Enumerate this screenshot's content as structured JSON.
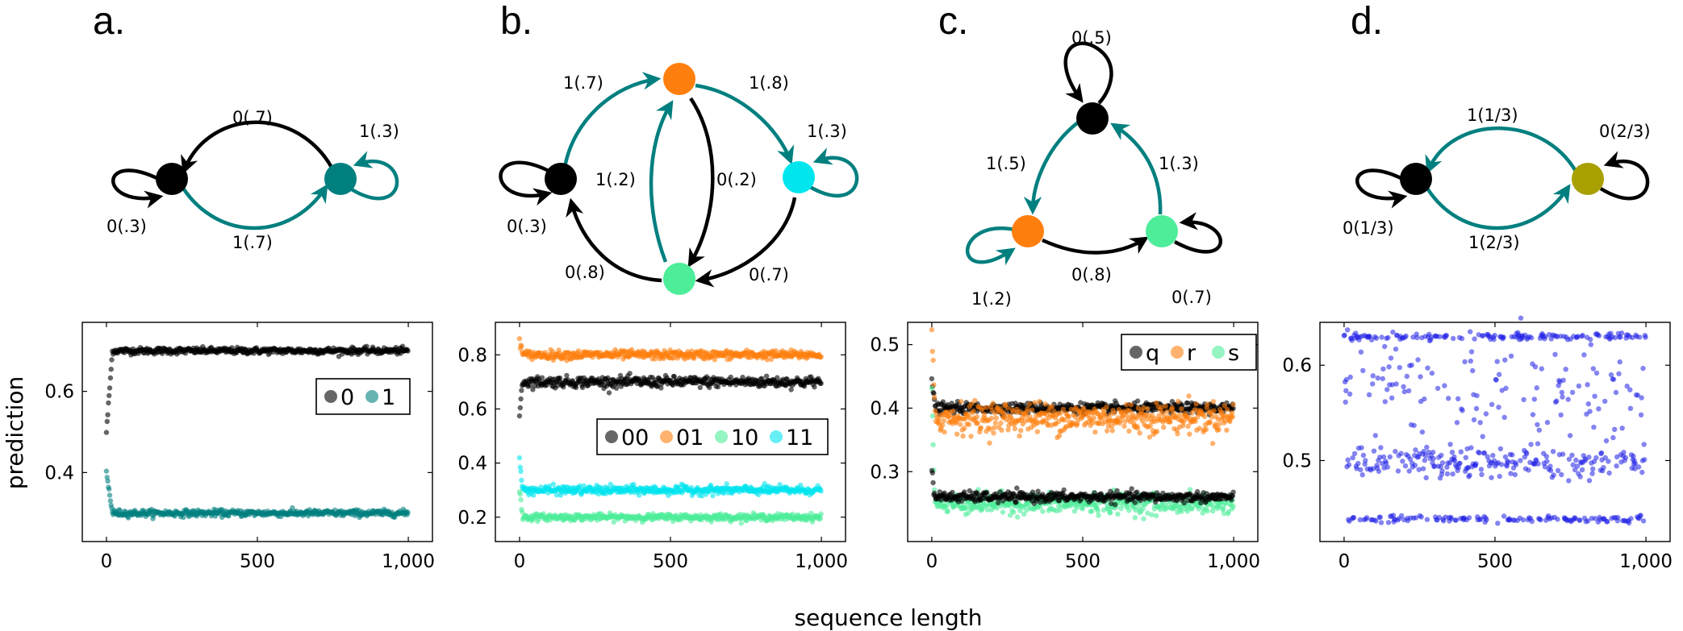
{
  "figure": {
    "xlabel": "sequence length",
    "ylabel": "prediction"
  },
  "colors": {
    "black": "#000000",
    "teal": "#007f7f",
    "orange": "#ff7f0e",
    "cyan": "#00e5ee",
    "green": "#4ded9a",
    "olive": "#a8a000",
    "blue": "#1f1fe6"
  },
  "panels": [
    {
      "letter": "a.",
      "graph": {
        "nodes": [
          {
            "id": "A",
            "color": "#000000"
          },
          {
            "id": "B",
            "color": "#007f7f"
          }
        ],
        "edges": [
          {
            "from": "B",
            "to": "A",
            "label": "0(.7)",
            "color": "black"
          },
          {
            "from": "A",
            "to": "B",
            "label": "1(.7)",
            "color": "teal"
          },
          {
            "from": "A",
            "to": "A",
            "label": "0(.3)",
            "color": "black"
          },
          {
            "from": "B",
            "to": "B",
            "label": "1(.3)",
            "color": "teal"
          }
        ]
      }
    },
    {
      "letter": "b.",
      "graph": {
        "nodes": [
          {
            "id": "00",
            "color": "#000000"
          },
          {
            "id": "01",
            "color": "#ff7f0e"
          },
          {
            "id": "11",
            "color": "#00e5ee"
          },
          {
            "id": "10",
            "color": "#4ded9a"
          }
        ],
        "edges": [
          {
            "from": "00",
            "to": "01",
            "label": "1(.7)",
            "color": "teal"
          },
          {
            "from": "01",
            "to": "11",
            "label": "1(.8)",
            "color": "teal"
          },
          {
            "from": "10",
            "to": "01",
            "label": "1(.2)",
            "color": "teal"
          },
          {
            "from": "01",
            "to": "10",
            "label": "0(.2)",
            "color": "black"
          },
          {
            "from": "10",
            "to": "00",
            "label": "0(.8)",
            "color": "black"
          },
          {
            "from": "11",
            "to": "10",
            "label": "0(.7)",
            "color": "black"
          },
          {
            "from": "00",
            "to": "00",
            "label": "0(.3)",
            "color": "black"
          },
          {
            "from": "11",
            "to": "11",
            "label": "1(.3)",
            "color": "teal"
          }
        ]
      }
    },
    {
      "letter": "c.",
      "graph": {
        "nodes": [
          {
            "id": "q",
            "color": "#000000"
          },
          {
            "id": "r",
            "color": "#ff7f0e"
          },
          {
            "id": "s",
            "color": "#4ded9a"
          }
        ],
        "edges": [
          {
            "from": "q",
            "to": "q",
            "label": "0(.5)",
            "color": "black"
          },
          {
            "from": "q",
            "to": "r",
            "label": "1(.5)",
            "color": "teal"
          },
          {
            "from": "s",
            "to": "q",
            "label": "1(.3)",
            "color": "teal"
          },
          {
            "from": "r",
            "to": "s",
            "label": "0(.8)",
            "color": "black"
          },
          {
            "from": "r",
            "to": "r",
            "label": "1(.2)",
            "color": "teal"
          },
          {
            "from": "s",
            "to": "s",
            "label": "0(.7)",
            "color": "black"
          }
        ]
      }
    },
    {
      "letter": "d.",
      "graph": {
        "nodes": [
          {
            "id": "A",
            "color": "#000000"
          },
          {
            "id": "B",
            "color": "#a8a000"
          }
        ],
        "edges": [
          {
            "from": "B",
            "to": "A",
            "label": "1(1/3)",
            "color": "teal"
          },
          {
            "from": "A",
            "to": "B",
            "label": "1(2/3)",
            "color": "teal"
          },
          {
            "from": "A",
            "to": "A",
            "label": "0(1/3)",
            "color": "black"
          },
          {
            "from": "B",
            "to": "B",
            "label": "0(2/3)",
            "color": "black"
          }
        ]
      }
    }
  ],
  "chart_data": [
    {
      "type": "scatter",
      "xlim": [
        -80,
        1080
      ],
      "ylim": [
        0.23,
        0.77
      ],
      "xticks": [
        0,
        500,
        1000
      ],
      "xtick_labels": [
        "0",
        "500",
        "1,000"
      ],
      "yticks": [
        0.4,
        0.6
      ],
      "ytick_labels": [
        "0.4",
        "0.6"
      ],
      "legend": {
        "placement": "center-right",
        "entries": [
          {
            "label": "0",
            "color": "#000000"
          },
          {
            "label": "1",
            "color": "#007f7f"
          }
        ]
      },
      "series": [
        {
          "name": "0",
          "color": "#000000",
          "level": 0.7,
          "spread": 0.004,
          "start": 0.5,
          "converge": 20
        },
        {
          "name": "1",
          "color": "#007f7f",
          "level": 0.3,
          "spread": 0.004,
          "start": 0.4,
          "converge": 20
        }
      ]
    },
    {
      "type": "scatter",
      "xlim": [
        -80,
        1080
      ],
      "ylim": [
        0.11,
        0.92
      ],
      "xticks": [
        0,
        500,
        1000
      ],
      "xtick_labels": [
        "0",
        "500",
        "1,000"
      ],
      "yticks": [
        0.2,
        0.4,
        0.6,
        0.8
      ],
      "ytick_labels": [
        "0.2",
        "0.4",
        "0.6",
        "0.8"
      ],
      "legend": {
        "placement": "right",
        "entries": [
          {
            "label": "00",
            "color": "#000000"
          },
          {
            "label": "01",
            "color": "#ff7f0e"
          },
          {
            "label": "10",
            "color": "#4ded9a"
          },
          {
            "label": "11",
            "color": "#00e5ee"
          }
        ]
      },
      "series": [
        {
          "name": "00",
          "color": "#000000",
          "level": 0.7,
          "spread": 0.01,
          "start": 0.59,
          "converge": 10
        },
        {
          "name": "01",
          "color": "#ff7f0e",
          "level": 0.8,
          "spread": 0.008,
          "start": 0.86,
          "converge": 10
        },
        {
          "name": "10",
          "color": "#4ded9a",
          "level": 0.2,
          "spread": 0.006,
          "start": 0.3,
          "converge": 10
        },
        {
          "name": "11",
          "color": "#00e5ee",
          "level": 0.3,
          "spread": 0.008,
          "start": 0.42,
          "converge": 10
        }
      ]
    },
    {
      "type": "scatter",
      "xlim": [
        -80,
        1080
      ],
      "ylim": [
        0.19,
        0.535
      ],
      "xticks": [
        0,
        500,
        1000
      ],
      "xtick_labels": [
        "0",
        "500",
        "1,000"
      ],
      "yticks": [
        0.3,
        0.4,
        0.5
      ],
      "ytick_labels": [
        "0.3",
        "0.4",
        "0.5"
      ],
      "legend": {
        "placement": "top-right",
        "entries": [
          {
            "label": "q",
            "color": "#000000"
          },
          {
            "label": "r",
            "color": "#ff7f0e"
          },
          {
            "label": "s",
            "color": "#4ded9a"
          }
        ]
      },
      "series": [
        {
          "name": "q",
          "color": "#000000",
          "level": 0.4,
          "spread": 0.004,
          "start": 0.45,
          "converge": 10
        },
        {
          "name": "r",
          "color": "#ff7f0e",
          "level": 0.385,
          "spread": 0.012,
          "start": 0.51,
          "converge": 10
        },
        {
          "name": "s",
          "color": "#4ded9a",
          "level": 0.25,
          "spread": 0.008,
          "start": 0.44,
          "converge": 10
        },
        {
          "name": "q-low",
          "color": "#000000",
          "level": 0.26,
          "spread": 0.004,
          "start": 0.3,
          "converge": 10
        }
      ]
    },
    {
      "type": "scatter",
      "xlim": [
        -80,
        1080
      ],
      "ylim": [
        0.415,
        0.645
      ],
      "xticks": [
        0,
        500,
        1000
      ],
      "xtick_labels": [
        "0",
        "500",
        "1,000"
      ],
      "yticks": [
        0.5,
        0.6
      ],
      "ytick_labels": [
        "0.5",
        "0.6"
      ],
      "legend": null,
      "series": [
        {
          "name": "",
          "color": "#1f1fe6",
          "bands": [
            {
              "level": 0.63,
              "spread": 0.002,
              "share": 0.22
            },
            {
              "level": 0.57,
              "spread": 0.025,
              "share": 0.22
            },
            {
              "level": 0.498,
              "spread": 0.008,
              "share": 0.36
            },
            {
              "level": 0.439,
              "spread": 0.002,
              "share": 0.2
            }
          ]
        }
      ]
    }
  ]
}
